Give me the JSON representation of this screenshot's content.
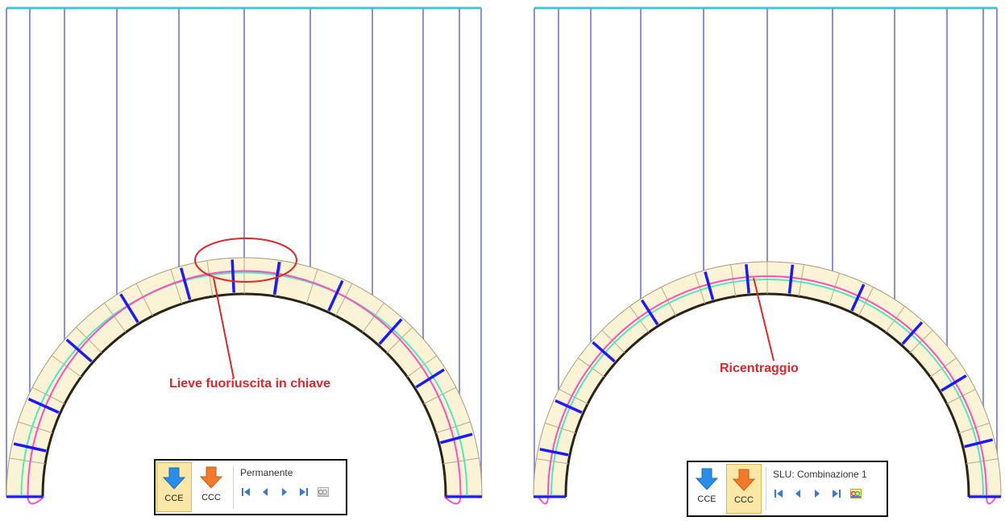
{
  "left_panel": {
    "annotation": "Lieve fuoriuscita in chiave",
    "toolbar": {
      "btn_cce": "CCE",
      "btn_ccc": "CCC",
      "active": "CCE",
      "load_case": "Permanente",
      "chart_icon_enabled": false
    }
  },
  "right_panel": {
    "annotation": "Ricentraggio",
    "toolbar": {
      "btn_cce": "CCE",
      "btn_ccc": "CCC",
      "active": "CCC",
      "load_case": "SLU: Combinazione 1",
      "chart_icon_enabled": true
    }
  },
  "colors": {
    "load_lines": "#8a8fe0",
    "top_beam": "#40c8d0",
    "arch_fill": "#fbf3d6",
    "thrust_line_pink": "#ff4fb8",
    "thrust_line_green": "#4fe8c0",
    "joint_marks": "#1a1aff",
    "annotation": "#e0262a",
    "cce_arrow": "#2a8ee8",
    "ccc_arrow": "#f27b2a"
  }
}
